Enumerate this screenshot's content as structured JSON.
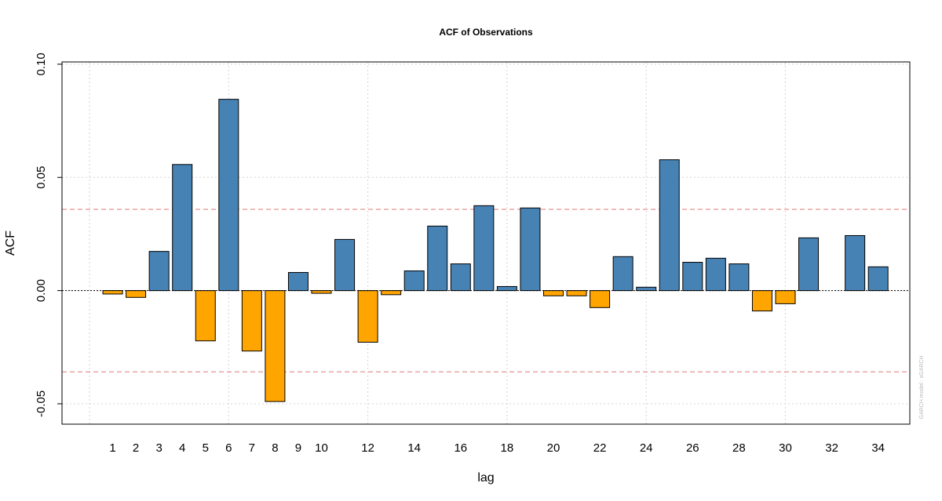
{
  "chart_data": {
    "type": "bar",
    "title": "ACF of Observations",
    "xlabel": "lag",
    "ylabel": "ACF",
    "watermark": "GARCH model : sGARCH",
    "categories": [
      1,
      2,
      3,
      4,
      5,
      6,
      7,
      8,
      9,
      10,
      11,
      12,
      13,
      14,
      15,
      16,
      17,
      18,
      19,
      20,
      21,
      22,
      23,
      24,
      25,
      26,
      27,
      28,
      29,
      30,
      31,
      32,
      33,
      34
    ],
    "values": [
      -0.0015,
      -0.003,
      0.0173,
      0.0557,
      -0.0222,
      0.0845,
      -0.0267,
      -0.049,
      0.008,
      -0.0012,
      0.0226,
      -0.0228,
      -0.0018,
      0.0087,
      0.0285,
      0.0118,
      0.0375,
      0.0018,
      0.0365,
      -0.0023,
      -0.0023,
      -0.0075,
      0.015,
      0.0015,
      0.0578,
      0.0125,
      0.0143,
      0.0118,
      -0.009,
      -0.0058,
      0.0233,
      0.0,
      0.0243,
      0.0105
    ],
    "x_tick_labels": [
      "1",
      "2",
      "3",
      "4",
      "5",
      "6",
      "7",
      "8",
      "9",
      "10",
      "12",
      "14",
      "16",
      "18",
      "20",
      "22",
      "24",
      "26",
      "28",
      "30",
      "32",
      "34"
    ],
    "y_ticks": [
      -0.05,
      0.0,
      0.05,
      0.1
    ],
    "y_tick_labels": [
      "-0.05",
      "0.00",
      "0.05",
      "0.10"
    ],
    "ylim": [
      -0.059,
      0.101
    ],
    "confidence_bound": 0.0359,
    "colors": {
      "positive": "#4682b4",
      "negative": "#ffa500",
      "confidence_line": "#e07a7a",
      "grid": "#d3d3d3",
      "zero_line": "#000000"
    },
    "grid": true,
    "legend": "none"
  }
}
